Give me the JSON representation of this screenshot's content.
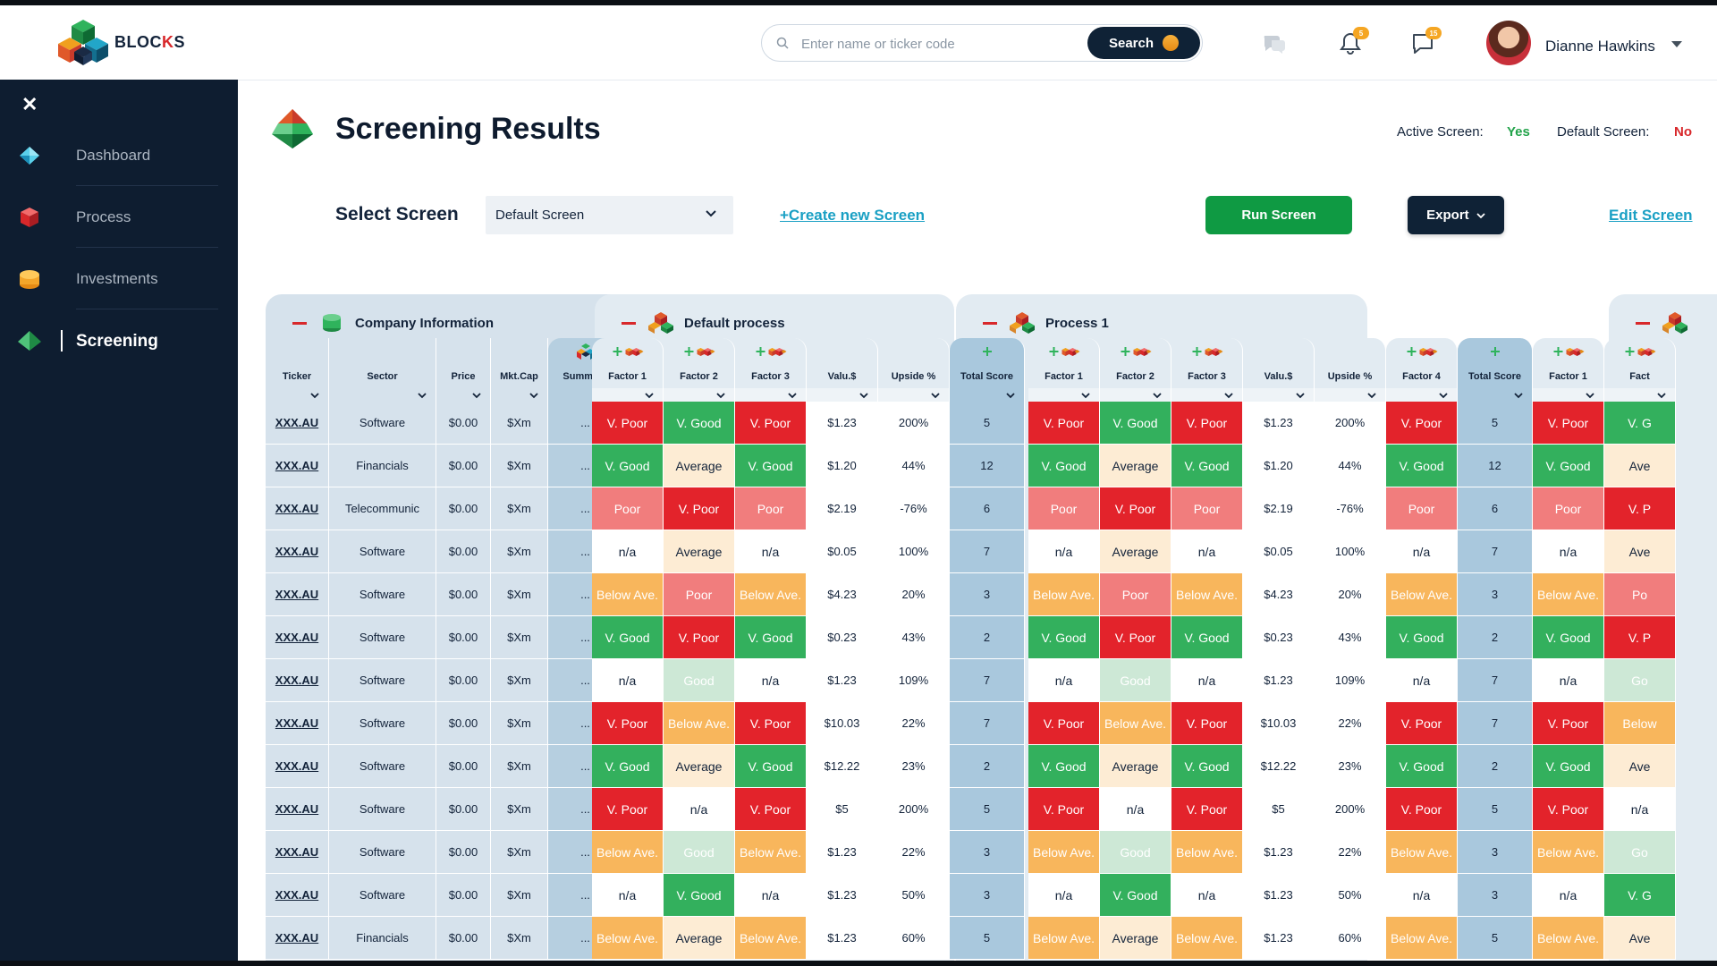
{
  "brand": {
    "name_main": "BLOC",
    "name_k": "K",
    "name_end": "S"
  },
  "header": {
    "search_placeholder": "Enter name or ticker code",
    "search_button": "Search",
    "notification_badge": "5",
    "message_badge": "15",
    "user_name": "Dianne Hawkins"
  },
  "sidebar": {
    "items": [
      {
        "label": "Dashboard",
        "active": false
      },
      {
        "label": "Process",
        "active": false
      },
      {
        "label": "Investments",
        "active": false
      },
      {
        "label": "Screening",
        "active": true
      }
    ]
  },
  "page": {
    "title": "Screening Results",
    "active_screen_label": "Active Screen:",
    "active_screen_value": "Yes",
    "default_screen_label": "Default Screen:",
    "default_screen_value": "No",
    "select_label": "Select Screen",
    "select_value": "Default Screen",
    "create_link": "+Create new Screen",
    "run_button": "Run Screen",
    "export_button": "Export",
    "edit_link": "Edit Screen"
  },
  "table": {
    "groups": [
      {
        "title": "Company Information"
      },
      {
        "title": "Default process"
      },
      {
        "title": "Process 1"
      },
      {
        "title": ""
      }
    ],
    "company_columns": [
      "Ticker",
      "Sector",
      "Price",
      "Mkt.Cap",
      "Summary"
    ],
    "default_columns": [
      "Factor 1",
      "Factor 2",
      "Factor 3",
      "Valu.$",
      "Upside %",
      "Total Score"
    ],
    "process1_columns": [
      "Factor 1",
      "Factor 2",
      "Factor 3",
      "Valu.$",
      "Upside %",
      "Factor 4",
      "Total Score"
    ],
    "process2_columns": [
      "Factor 1",
      "Fact"
    ],
    "rows": [
      {
        "ticker": "XXX.AU",
        "sector": "Software",
        "price": "$0.00",
        "cap": "$Xm",
        "summary": "...",
        "f1": "V. Poor",
        "f2": "V. Good",
        "f3": "V. Poor",
        "val": "$1.23",
        "up": "200%",
        "total": "5",
        "f4": "V. Poor",
        "p1total": "5",
        "p2f1": "V. Poor",
        "p2f2": "V. G"
      },
      {
        "ticker": "XXX.AU",
        "sector": "Financials",
        "price": "$0.00",
        "cap": "$Xm",
        "summary": "...",
        "f1": "V. Good",
        "f2": "Average",
        "f3": "V. Good",
        "val": "$1.20",
        "up": "44%",
        "total": "12",
        "f4": "V. Good",
        "p1total": "12",
        "p2f1": "V. Good",
        "p2f2": "Ave"
      },
      {
        "ticker": "XXX.AU",
        "sector": "Telecommunic",
        "price": "$0.00",
        "cap": "$Xm",
        "summary": "...",
        "f1": "Poor",
        "f2": "V. Poor",
        "f3": "Poor",
        "val": "$2.19",
        "up": "-76%",
        "total": "6",
        "f4": "Poor",
        "p1total": "6",
        "p2f1": "Poor",
        "p2f2": "V. P"
      },
      {
        "ticker": "XXX.AU",
        "sector": "Software",
        "price": "$0.00",
        "cap": "$Xm",
        "summary": "...",
        "f1": "n/a",
        "f2": "Average",
        "f3": "n/a",
        "val": "$0.05",
        "up": "100%",
        "total": "7",
        "f4": "n/a",
        "p1total": "7",
        "p2f1": "n/a",
        "p2f2": "Ave"
      },
      {
        "ticker": "XXX.AU",
        "sector": "Software",
        "price": "$0.00",
        "cap": "$Xm",
        "summary": "...",
        "f1": "Below Ave.",
        "f2": "Poor",
        "f3": "Below Ave.",
        "val": "$4.23",
        "up": "20%",
        "total": "3",
        "f4": "Below Ave.",
        "p1total": "3",
        "p2f1": "Below Ave.",
        "p2f2": "Po"
      },
      {
        "ticker": "XXX.AU",
        "sector": "Software",
        "price": "$0.00",
        "cap": "$Xm",
        "summary": "...",
        "f1": "V. Good",
        "f2": "V. Poor",
        "f3": "V. Good",
        "val": "$0.23",
        "up": "43%",
        "total": "2",
        "f4": "V. Good",
        "p1total": "2",
        "p2f1": "V. Good",
        "p2f2": "V. P"
      },
      {
        "ticker": "XXX.AU",
        "sector": "Software",
        "price": "$0.00",
        "cap": "$Xm",
        "summary": "...",
        "f1": "n/a",
        "f2": "Good",
        "f3": "n/a",
        "val": "$1.23",
        "up": "109%",
        "total": "7",
        "f4": "n/a",
        "p1total": "7",
        "p2f1": "n/a",
        "p2f2": "Go"
      },
      {
        "ticker": "XXX.AU",
        "sector": "Software",
        "price": "$0.00",
        "cap": "$Xm",
        "summary": "...",
        "f1": "V. Poor",
        "f2": "Below Ave.",
        "f3": "V. Poor",
        "val": "$10.03",
        "up": "22%",
        "total": "7",
        "f4": "V. Poor",
        "p1total": "7",
        "p2f1": "V. Poor",
        "p2f2": "Below"
      },
      {
        "ticker": "XXX.AU",
        "sector": "Software",
        "price": "$0.00",
        "cap": "$Xm",
        "summary": "...",
        "f1": "V. Good",
        "f2": "Average",
        "f3": "V. Good",
        "val": "$12.22",
        "up": "23%",
        "total": "2",
        "f4": "V. Good",
        "p1total": "2",
        "p2f1": "V. Good",
        "p2f2": "Ave"
      },
      {
        "ticker": "XXX.AU",
        "sector": "Software",
        "price": "$0.00",
        "cap": "$Xm",
        "summary": "...",
        "f1": "V. Poor",
        "f2": "n/a",
        "f3": "V. Poor",
        "val": "$5",
        "up": "200%",
        "total": "5",
        "f4": "V. Poor",
        "p1total": "5",
        "p2f1": "V. Poor",
        "p2f2": "n/a"
      },
      {
        "ticker": "XXX.AU",
        "sector": "Software",
        "price": "$0.00",
        "cap": "$Xm",
        "summary": "...",
        "f1": "Below Ave.",
        "f2": "Good",
        "f3": "Below Ave.",
        "val": "$1.23",
        "up": "22%",
        "total": "3",
        "f4": "Below Ave.",
        "p1total": "3",
        "p2f1": "Below Ave.",
        "p2f2": "Go"
      },
      {
        "ticker": "XXX.AU",
        "sector": "Software",
        "price": "$0.00",
        "cap": "$Xm",
        "summary": "...",
        "f1": "n/a",
        "f2": "V. Good",
        "f3": "n/a",
        "val": "$1.23",
        "up": "50%",
        "total": "3",
        "f4": "n/a",
        "p1total": "3",
        "p2f1": "n/a",
        "p2f2": "V. G"
      },
      {
        "ticker": "XXX.AU",
        "sector": "Financials",
        "price": "$0.00",
        "cap": "$Xm",
        "summary": "...",
        "f1": "Below Ave.",
        "f2": "Average",
        "f3": "Below Ave.",
        "val": "$1.23",
        "up": "60%",
        "total": "5",
        "f4": "Below Ave.",
        "p1total": "5",
        "p2f1": "Below Ave.",
        "p2f2": "Ave"
      }
    ]
  },
  "colors": {
    "v_poor": "#e3232b",
    "poor": "#f17d7d",
    "below_ave": "#f8b65c",
    "average": "#fdecd4",
    "good": "#cde8d6",
    "v_good": "#33b05d",
    "na": "#ffffff",
    "company_panel": "#d6e2ec",
    "process_panel": "#e2ebf2",
    "total_col": "#a9c8dd"
  }
}
